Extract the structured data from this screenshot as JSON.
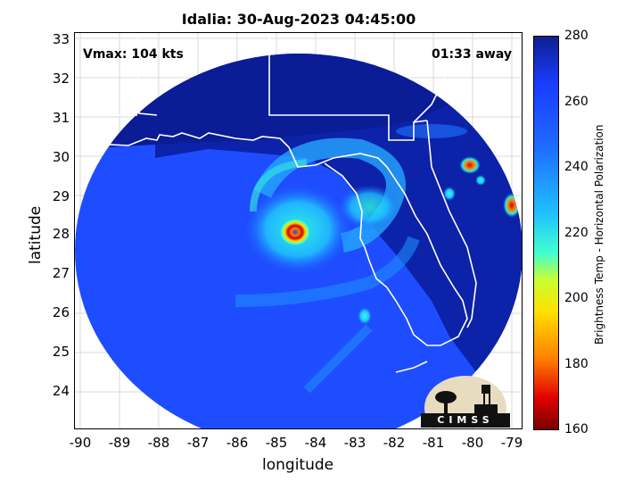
{
  "title": "Idalia: 30-Aug-2023 04:45:00",
  "annotations": {
    "vmax": "Vmax: 104 kts",
    "time_away": "01:33 away"
  },
  "axes": {
    "xlabel": "longitude",
    "ylabel": "latitude",
    "xlim": [
      -90.2,
      -78.8
    ],
    "ylim": [
      23.1,
      33.2
    ],
    "xticks": [
      "-90",
      "-89",
      "-88",
      "-87",
      "-86",
      "-85",
      "-84",
      "-83",
      "-82",
      "-81",
      "-80",
      "-79"
    ],
    "yticks": [
      "33",
      "32",
      "31",
      "30",
      "29",
      "28",
      "27",
      "26",
      "25",
      "24"
    ]
  },
  "colorbar": {
    "label": "Brightness Temp - Horizontal Polarization",
    "ticks": [
      "280",
      "260",
      "240",
      "220",
      "200",
      "180",
      "160"
    ],
    "range": [
      160,
      280
    ]
  },
  "logo": {
    "text": "CIMSS"
  },
  "storm_center": {
    "lon": -84.55,
    "lat": 28.0
  },
  "colors": {
    "ocean_scene": "#1e4dff",
    "land_scene": "#0a1f9e",
    "coastline": "#ffffff",
    "eyewall": "#d40000"
  }
}
